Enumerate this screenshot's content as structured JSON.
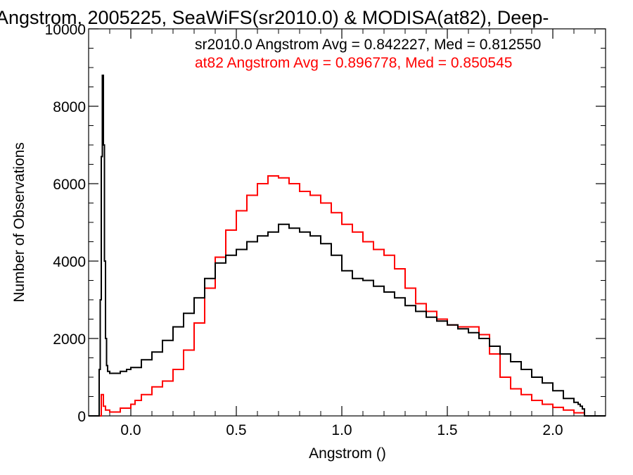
{
  "chart_data": {
    "type": "line",
    "step": true,
    "title": "Angstrom, 2005225, SeaWiFS(sr2010.0) & MODISA(at82), Deep-",
    "xlabel": "Angstrom ()",
    "ylabel": "Number of Observations",
    "xlim": [
      -0.2,
      2.25
    ],
    "ylim": [
      0,
      10000
    ],
    "xticks": [
      0.0,
      0.5,
      1.0,
      1.5,
      2.0
    ],
    "xtick_labels": [
      "0.0",
      "0.5",
      "1.0",
      "1.5",
      "2.0"
    ],
    "yticks": [
      0,
      2000,
      4000,
      6000,
      8000,
      10000
    ],
    "ytick_labels": [
      "0",
      "2000",
      "4000",
      "6000",
      "8000",
      "10000"
    ],
    "grid": false,
    "annotations": [
      {
        "text": "sr2010.0 Angstrom Avg = 0.842227, Med = 0.812550",
        "color": "#000000"
      },
      {
        "text": "at82 Angstrom Avg = 0.896778, Med = 0.850545",
        "color": "#ff0000"
      }
    ],
    "series": [
      {
        "color": "#000000",
        "x": [
          -0.2,
          -0.16,
          -0.15,
          -0.145,
          -0.14,
          -0.135,
          -0.13,
          -0.125,
          -0.12,
          -0.115,
          -0.11,
          -0.1,
          -0.08,
          -0.05,
          -0.02,
          0.0,
          0.05,
          0.1,
          0.15,
          0.2,
          0.25,
          0.3,
          0.35,
          0.4,
          0.45,
          0.5,
          0.55,
          0.6,
          0.65,
          0.7,
          0.75,
          0.8,
          0.85,
          0.9,
          0.95,
          1.0,
          1.05,
          1.1,
          1.15,
          1.2,
          1.25,
          1.3,
          1.35,
          1.4,
          1.45,
          1.5,
          1.55,
          1.6,
          1.65,
          1.7,
          1.75,
          1.8,
          1.85,
          1.9,
          1.95,
          2.0,
          2.05,
          2.1,
          2.12,
          2.13,
          2.14,
          2.15,
          2.25
        ],
        "y": [
          0,
          0,
          1200,
          3000,
          6700,
          8800,
          7000,
          4000,
          2000,
          1300,
          1150,
          1100,
          1100,
          1150,
          1200,
          1250,
          1450,
          1650,
          1950,
          2300,
          2650,
          3050,
          3550,
          3950,
          4150,
          4300,
          4500,
          4650,
          4750,
          4950,
          4850,
          4750,
          4650,
          4450,
          4150,
          3750,
          3550,
          3500,
          3350,
          3200,
          3050,
          2850,
          2700,
          2550,
          2450,
          2350,
          2250,
          2150,
          2000,
          1800,
          1600,
          1400,
          1200,
          1000,
          850,
          650,
          450,
          350,
          300,
          250,
          180,
          0,
          0
        ]
      },
      {
        "color": "#ff0000",
        "x": [
          -0.2,
          -0.15,
          -0.14,
          -0.13,
          -0.12,
          -0.1,
          -0.05,
          0.0,
          0.02,
          0.05,
          0.1,
          0.15,
          0.2,
          0.25,
          0.3,
          0.35,
          0.4,
          0.45,
          0.5,
          0.55,
          0.6,
          0.65,
          0.7,
          0.75,
          0.8,
          0.85,
          0.9,
          0.95,
          1.0,
          1.05,
          1.1,
          1.15,
          1.2,
          1.25,
          1.3,
          1.35,
          1.4,
          1.45,
          1.5,
          1.55,
          1.6,
          1.65,
          1.7,
          1.75,
          1.8,
          1.85,
          1.9,
          1.95,
          2.0,
          2.05,
          2.1,
          2.15,
          2.25
        ],
        "y": [
          0,
          0,
          550,
          250,
          150,
          100,
          200,
          300,
          400,
          550,
          750,
          900,
          1200,
          1700,
          2400,
          3300,
          4100,
          4800,
          5300,
          5700,
          6000,
          6200,
          6150,
          6000,
          5800,
          5700,
          5500,
          5250,
          4950,
          4750,
          4500,
          4300,
          4150,
          3800,
          3300,
          2900,
          2700,
          2500,
          2350,
          2300,
          2300,
          2100,
          1600,
          1000,
          700,
          550,
          400,
          300,
          220,
          150,
          80,
          0,
          0
        ]
      }
    ]
  }
}
